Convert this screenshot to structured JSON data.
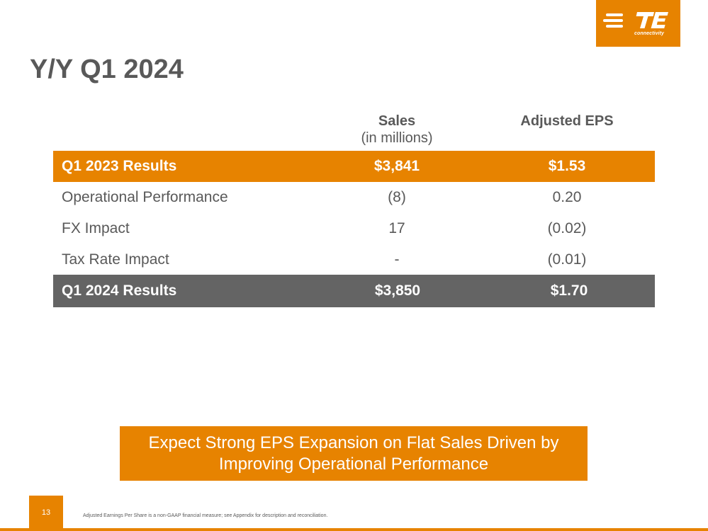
{
  "logo": {
    "brand": "TE",
    "wordmark": "connectivity",
    "background_color": "#e78300"
  },
  "title": "Y/Y Q1 2024",
  "table": {
    "headers": {
      "sales": "Sales",
      "sales_unit": "(in millions)",
      "eps": "Adjusted EPS"
    },
    "rows": [
      {
        "label": "Q1 2023 Results",
        "sales": "$3,841",
        "eps": "$1.53"
      },
      {
        "label": "Operational Performance",
        "sales": "(8)",
        "eps": "0.20"
      },
      {
        "label": "FX Impact",
        "sales": "17",
        "eps": "(0.02)"
      },
      {
        "label": "Tax Rate Impact",
        "sales": "-",
        "eps": "(0.01)"
      },
      {
        "label": "Q1 2024 Results",
        "sales": "$3,850",
        "eps": "$1.70"
      }
    ]
  },
  "callout": {
    "line1": "Expect Strong EPS Expansion on Flat Sales Driven by",
    "line2": "Improving Operational Performance"
  },
  "footer": {
    "page_number": "13",
    "footnote": "Adjusted Earnings Per Share is a non-GAAP financial measure; see Appendix for description and reconciliation."
  },
  "colors": {
    "accent": "#e78300",
    "total_row": "#646464",
    "text": "#595959"
  }
}
